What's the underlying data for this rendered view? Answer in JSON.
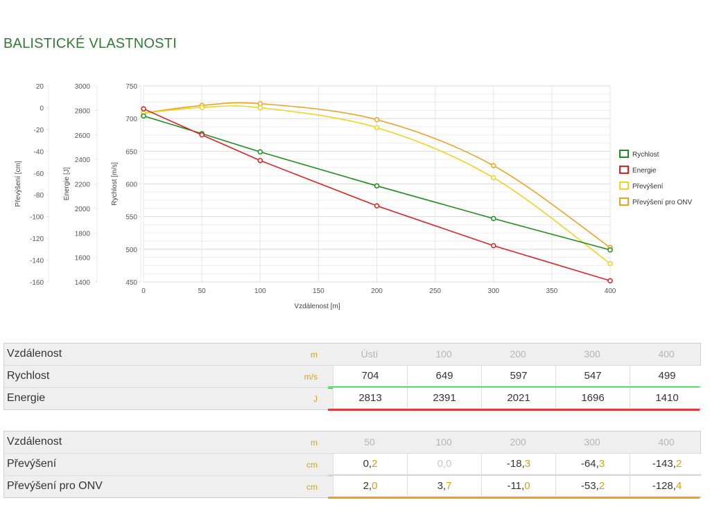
{
  "page_title": "BALISTICKÉ VLASTNOSTI",
  "chart_data": {
    "type": "line",
    "xlabel": "Vzdálenost [m]",
    "x_ticks": [
      0,
      50,
      100,
      150,
      200,
      250,
      300,
      350,
      400
    ],
    "xlim": [
      0,
      400
    ],
    "axes": {
      "velocity": {
        "label": "Rychlost [m/s]",
        "ylim": [
          450,
          750
        ],
        "ticks": [
          450,
          500,
          550,
          600,
          650,
          700,
          750
        ]
      },
      "energy": {
        "label": "Energie [J]",
        "ylim": [
          1400,
          3000
        ],
        "ticks": [
          1400,
          1600,
          1800,
          2000,
          2200,
          2400,
          2600,
          2800,
          3000
        ]
      },
      "drop": {
        "label": "Převýšení [cm]",
        "ylim": [
          -160,
          20
        ],
        "ticks": [
          -160,
          -140,
          -120,
          -100,
          -80,
          -60,
          -40,
          -20,
          0,
          20
        ]
      }
    },
    "series": [
      {
        "name": "Rychlost",
        "axis": "velocity",
        "color": "#1e8c1e",
        "smooth": false,
        "x": [
          0,
          50,
          100,
          200,
          300,
          400
        ],
        "y": [
          704,
          677,
          649,
          597,
          547,
          499
        ]
      },
      {
        "name": "Energie",
        "axis": "energy",
        "color": "#e02020",
        "smooth": false,
        "x": [
          0,
          50,
          100,
          200,
          300,
          400
        ],
        "y": [
          2813,
          2600,
          2391,
          2021,
          1696,
          1410
        ]
      },
      {
        "name": "Převýšení",
        "axis": "drop",
        "color": "#f2d21b",
        "smooth": true,
        "x": [
          0,
          50,
          100,
          200,
          300,
          400
        ],
        "y": [
          -5,
          0.2,
          0.0,
          -18.3,
          -64.3,
          -143.2
        ]
      },
      {
        "name": "Převýšení pro ONV",
        "axis": "drop",
        "color": "#f0a020",
        "smooth": true,
        "x": [
          0,
          50,
          100,
          200,
          300,
          400
        ],
        "y": [
          -5,
          2.0,
          3.7,
          -11.0,
          -53.2,
          -128.4
        ]
      }
    ],
    "legend_position": "right"
  },
  "table1": {
    "header": {
      "label": "Vzdálenost",
      "unit": "m",
      "cols": [
        "Ústí",
        "100",
        "200",
        "300",
        "400"
      ]
    },
    "rows": [
      {
        "label": "Rychlost",
        "unit": "m/s",
        "color": "#2bb53a",
        "values": [
          {
            "int": "704",
            "dec": ""
          },
          {
            "int": "649",
            "dec": ""
          },
          {
            "int": "597",
            "dec": ""
          },
          {
            "int": "547",
            "dec": ""
          },
          {
            "int": "499",
            "dec": ""
          }
        ]
      },
      {
        "label": "Energie",
        "unit": "J",
        "color": "#e03a3a",
        "values": [
          {
            "int": "2813",
            "dec": ""
          },
          {
            "int": "2391",
            "dec": ""
          },
          {
            "int": "2021",
            "dec": ""
          },
          {
            "int": "1696",
            "dec": ""
          },
          {
            "int": "1410",
            "dec": ""
          }
        ]
      }
    ]
  },
  "table2": {
    "header": {
      "label": "Vzdálenost",
      "unit": "m",
      "cols": [
        "50",
        "100",
        "200",
        "300",
        "400"
      ]
    },
    "rows": [
      {
        "label": "Převýšení",
        "unit": "cm",
        "color": "#f4dc3a",
        "values": [
          {
            "int": "0,",
            "dec": "2"
          },
          {
            "int": "0,",
            "dec": "0",
            "muted": true
          },
          {
            "int": "-18,",
            "dec": "3"
          },
          {
            "int": "-64,",
            "dec": "3"
          },
          {
            "int": "-143,",
            "dec": "2"
          }
        ]
      },
      {
        "label": "Převýšení pro ONV",
        "unit": "cm",
        "color": "#f0a020",
        "values": [
          {
            "int": "2,",
            "dec": "0"
          },
          {
            "int": "3,",
            "dec": "7"
          },
          {
            "int": "-11,",
            "dec": "0"
          },
          {
            "int": "-53,",
            "dec": "2"
          },
          {
            "int": "-128,",
            "dec": "4"
          }
        ]
      }
    ]
  }
}
